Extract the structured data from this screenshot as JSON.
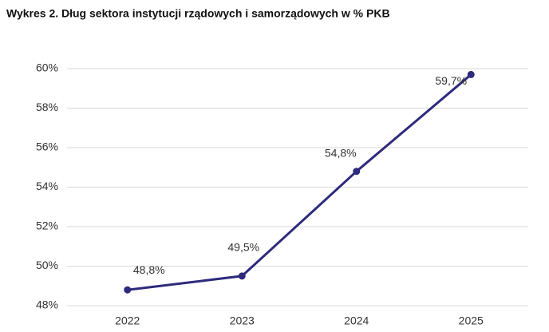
{
  "chart_data": {
    "type": "line",
    "title": "Wykres 2. Dług sektora instytucji rządowych i samorządowych w % PKB",
    "categories": [
      "2022",
      "2023",
      "2024",
      "2025"
    ],
    "values": [
      48.8,
      49.5,
      54.8,
      59.7
    ],
    "value_labels": [
      "48,8%",
      "49,5%",
      "54,8%",
      "59,7%"
    ],
    "color": "#2e2a7c",
    "ylim": [
      48,
      60
    ],
    "yticks": [
      {
        "value": 48,
        "label": "48%"
      },
      {
        "value": 50,
        "label": "50%"
      },
      {
        "value": 52,
        "label": "52%"
      },
      {
        "value": 54,
        "label": "54%"
      },
      {
        "value": 56,
        "label": "56%"
      },
      {
        "value": 58,
        "label": "58%"
      },
      {
        "value": 60,
        "label": "60%"
      }
    ],
    "grid": true
  }
}
